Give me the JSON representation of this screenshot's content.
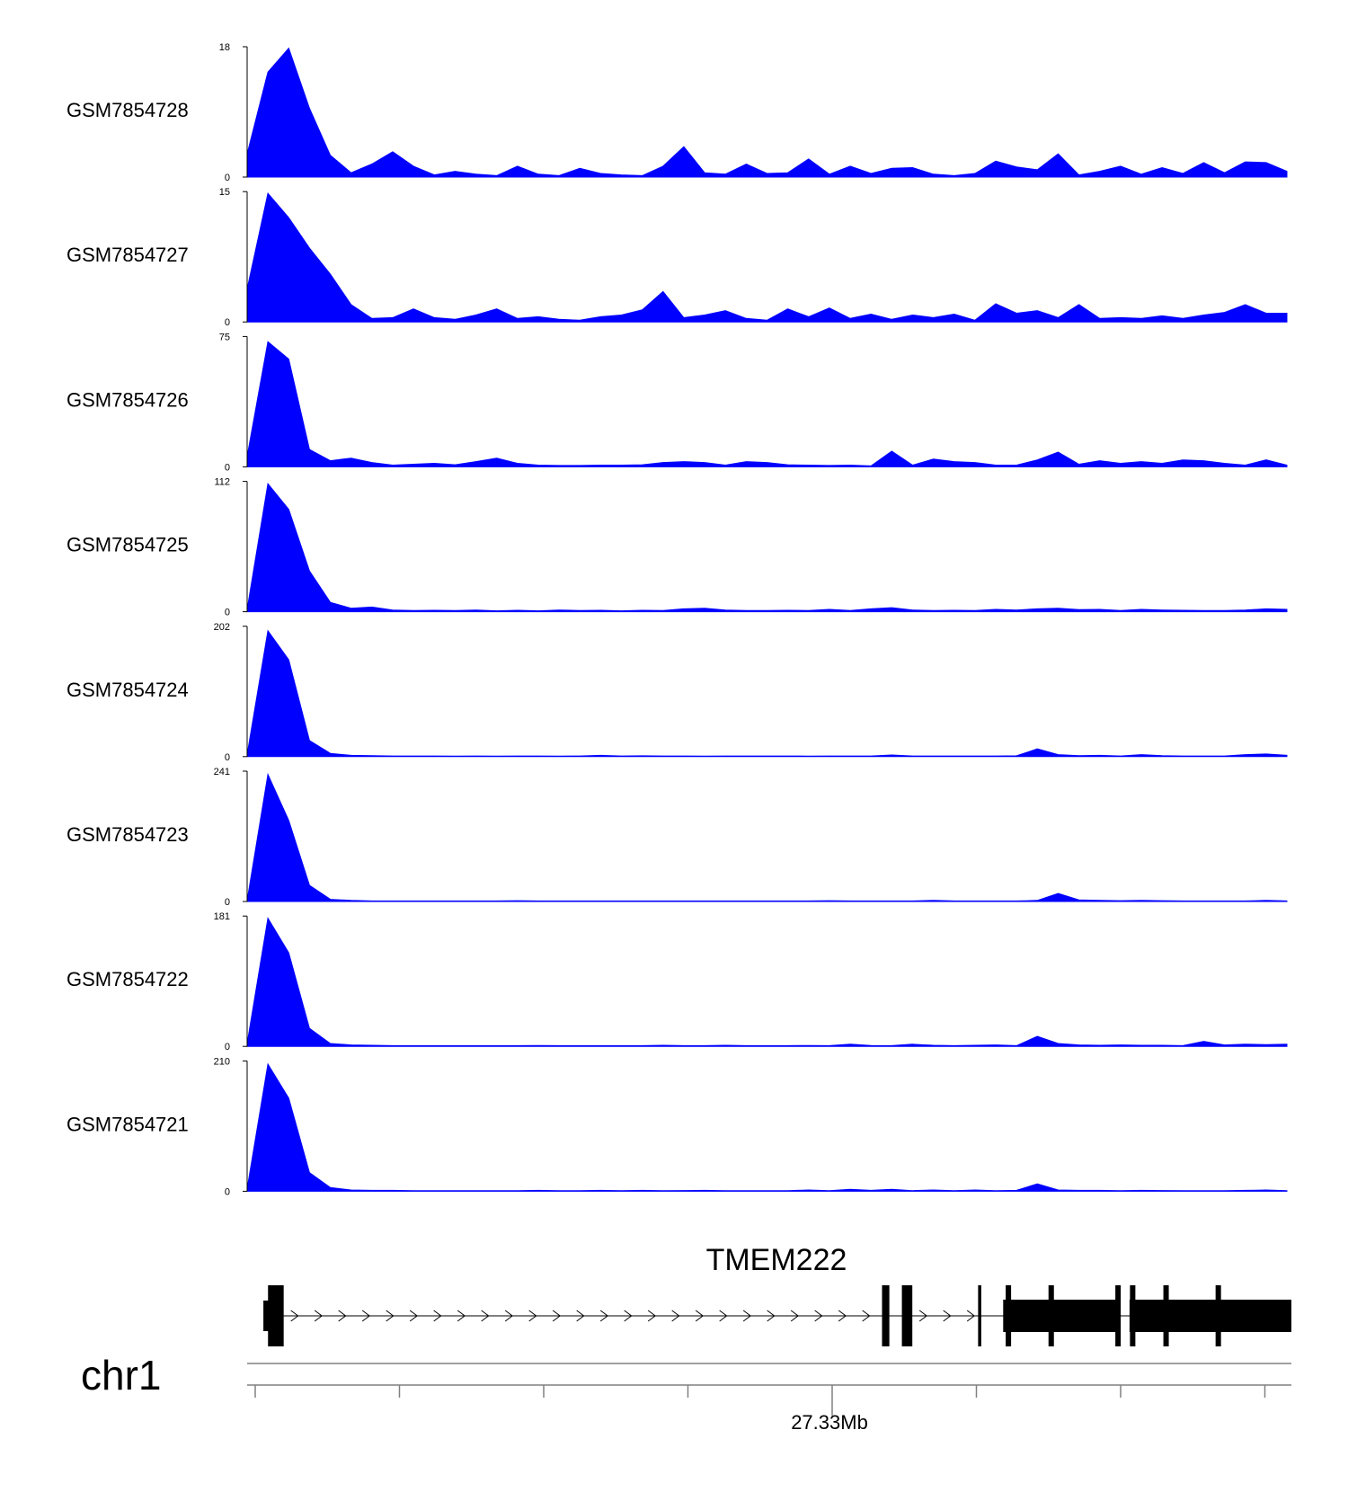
{
  "chart_data": {
    "type": "area",
    "title": "",
    "xlabel": "",
    "ylabel": "",
    "color": "#0000ff",
    "x": [
      0,
      0.02,
      0.04,
      0.06,
      0.08,
      0.1,
      0.12,
      0.14,
      0.16,
      0.18,
      0.2,
      0.22,
      0.24,
      0.26,
      0.28,
      0.3,
      0.32,
      0.34,
      0.36,
      0.38,
      0.4,
      0.42,
      0.44,
      0.46,
      0.48,
      0.5,
      0.52,
      0.54,
      0.56,
      0.58,
      0.6,
      0.62,
      0.64,
      0.66,
      0.68,
      0.7,
      0.72,
      0.74,
      0.76,
      0.78,
      0.8,
      0.82,
      0.84,
      0.86,
      0.88,
      0.9,
      0.92,
      0.94,
      0.96,
      0.98,
      1
    ],
    "series": [
      {
        "name": "GSM7854728",
        "ymax": 18,
        "values": [
          3.2,
          14.5,
          17.8,
          9.5,
          3.0,
          0.6,
          1.8,
          3.5,
          1.5,
          0.3,
          0.8,
          0.4,
          0.2,
          1.5,
          0.4,
          0.2,
          1.2,
          0.5,
          0.3,
          0.2,
          1.5,
          4.2,
          0.6,
          0.4,
          1.8,
          0.5,
          0.6,
          2.5,
          0.4,
          1.5,
          0.5,
          1.2,
          1.3,
          0.4,
          0.2,
          0.5,
          2.2,
          1.4,
          1.0,
          3.2,
          0.3,
          0.8,
          1.5,
          0.4,
          1.3,
          0.5,
          2.0,
          0.6,
          2.1,
          2.0,
          0.8
        ]
      },
      {
        "name": "GSM7854727",
        "ymax": 15,
        "values": [
          3.8,
          14.8,
          12.0,
          8.5,
          5.5,
          2.0,
          0.4,
          0.5,
          1.5,
          0.5,
          0.3,
          0.8,
          1.5,
          0.4,
          0.6,
          0.3,
          0.2,
          0.6,
          0.8,
          1.4,
          3.5,
          0.5,
          0.8,
          1.3,
          0.4,
          0.2,
          1.5,
          0.6,
          1.6,
          0.4,
          0.9,
          0.3,
          0.8,
          0.5,
          0.9,
          0.2,
          2.1,
          1.0,
          1.3,
          0.5,
          2.0,
          0.4,
          0.5,
          0.4,
          0.7,
          0.4,
          0.8,
          1.1,
          2.0,
          1.0,
          1.0
        ]
      },
      {
        "name": "GSM7854726",
        "ymax": 75,
        "values": [
          6.0,
          72.0,
          62.0,
          10.0,
          3.5,
          5.0,
          2.5,
          1.0,
          1.5,
          2.0,
          1.2,
          3.0,
          5.0,
          2.0,
          1.0,
          0.8,
          0.8,
          1.0,
          1.0,
          1.2,
          2.5,
          3.0,
          2.5,
          1.0,
          3.0,
          2.5,
          1.2,
          1.0,
          0.8,
          1.0,
          0.5,
          9.0,
          1.0,
          4.5,
          3.0,
          2.5,
          1.0,
          1.0,
          4.0,
          8.5,
          1.5,
          3.5,
          2.0,
          3.0,
          2.0,
          4.0,
          3.5,
          2.0,
          1.0,
          4.0,
          1.0
        ]
      },
      {
        "name": "GSM7854725",
        "ymax": 112,
        "values": [
          2.0,
          110.0,
          88.0,
          35.0,
          8.0,
          3.0,
          4.0,
          1.5,
          1.0,
          1.2,
          1.0,
          1.5,
          0.8,
          1.2,
          0.8,
          1.5,
          1.0,
          1.2,
          0.8,
          1.2,
          1.0,
          2.5,
          3.0,
          1.5,
          1.0,
          1.0,
          1.2,
          1.0,
          2.0,
          1.0,
          2.5,
          3.5,
          1.5,
          1.0,
          1.2,
          1.0,
          2.0,
          1.5,
          2.5,
          3.0,
          1.8,
          2.0,
          1.0,
          2.0,
          1.5,
          1.2,
          1.0,
          1.0,
          1.5,
          2.5,
          2.0
        ]
      },
      {
        "name": "GSM7854724",
        "ymax": 202,
        "values": [
          3.0,
          195.0,
          150.0,
          25.0,
          5.0,
          2.0,
          1.5,
          1.0,
          1.0,
          1.0,
          0.8,
          1.0,
          0.8,
          1.0,
          1.0,
          0.8,
          1.0,
          2.0,
          1.0,
          1.2,
          1.0,
          1.0,
          0.8,
          1.0,
          1.0,
          1.0,
          1.0,
          0.8,
          1.0,
          1.0,
          1.0,
          2.5,
          1.0,
          1.0,
          1.0,
          1.0,
          1.0,
          1.2,
          12.0,
          3.0,
          1.5,
          2.0,
          1.0,
          3.0,
          1.5,
          1.0,
          1.0,
          1.0,
          3.0,
          4.0,
          2.0
        ]
      },
      {
        "name": "GSM7854723",
        "ymax": 241,
        "values": [
          2.0,
          235.0,
          150.0,
          30.0,
          4.0,
          2.0,
          1.0,
          1.0,
          1.0,
          1.0,
          1.0,
          1.0,
          1.0,
          1.5,
          1.0,
          1.0,
          1.0,
          1.0,
          1.0,
          1.0,
          1.0,
          1.0,
          1.0,
          1.0,
          1.0,
          1.0,
          1.0,
          1.0,
          1.5,
          1.0,
          1.0,
          1.0,
          1.0,
          2.0,
          1.0,
          1.0,
          1.0,
          1.0,
          2.0,
          15.0,
          3.0,
          2.0,
          1.5,
          2.0,
          1.5,
          1.0,
          1.0,
          1.0,
          1.0,
          2.0,
          1.0
        ]
      },
      {
        "name": "GSM7854722",
        "ymax": 181,
        "values": [
          4.0,
          178.0,
          130.0,
          25.0,
          4.0,
          2.0,
          1.5,
          1.0,
          1.0,
          1.0,
          1.0,
          1.0,
          1.0,
          1.0,
          1.2,
          1.0,
          1.0,
          1.0,
          1.0,
          1.0,
          1.5,
          1.0,
          1.0,
          1.5,
          1.0,
          1.0,
          1.0,
          1.2,
          1.0,
          3.0,
          1.2,
          1.0,
          3.0,
          1.5,
          1.0,
          1.5,
          2.0,
          1.0,
          14.0,
          4.0,
          2.0,
          1.5,
          2.0,
          1.5,
          1.5,
          1.0,
          7.0,
          2.0,
          3.0,
          2.5,
          3.0
        ]
      },
      {
        "name": "GSM7854721",
        "ymax": 210,
        "values": [
          4.0,
          205.0,
          150.0,
          30.0,
          6.0,
          2.0,
          1.5,
          1.5,
          1.0,
          1.0,
          1.0,
          1.0,
          1.0,
          1.0,
          1.5,
          1.0,
          1.0,
          1.5,
          1.0,
          1.5,
          1.0,
          1.2,
          1.5,
          1.0,
          1.0,
          1.0,
          1.0,
          2.0,
          1.0,
          3.0,
          1.5,
          3.0,
          1.0,
          2.0,
          1.0,
          2.0,
          1.0,
          1.5,
          12.0,
          2.0,
          1.5,
          1.5,
          1.0,
          1.5,
          1.2,
          1.0,
          1.0,
          1.0,
          1.5,
          2.0,
          1.0
        ]
      }
    ],
    "gene": {
      "name": "TMEM222",
      "strand": "+",
      "exons": [
        {
          "start": 0.02,
          "end": 0.035,
          "thick": true
        },
        {
          "start": 0.608,
          "end": 0.615,
          "thick": true
        },
        {
          "start": 0.627,
          "end": 0.637,
          "thick": true
        },
        {
          "start": 0.7,
          "end": 0.703,
          "thick": true
        },
        {
          "start": 0.724,
          "end": 0.835,
          "thick": true
        },
        {
          "start": 0.845,
          "end": 1.0,
          "thick": true
        }
      ],
      "utr_start": 0.019,
      "utr_end": 0.022
    },
    "chromosome": "chr1",
    "axis": {
      "tick_count": 8,
      "labeled_tick_index": 4,
      "labeled_tick_text": "27.33Mb"
    }
  }
}
